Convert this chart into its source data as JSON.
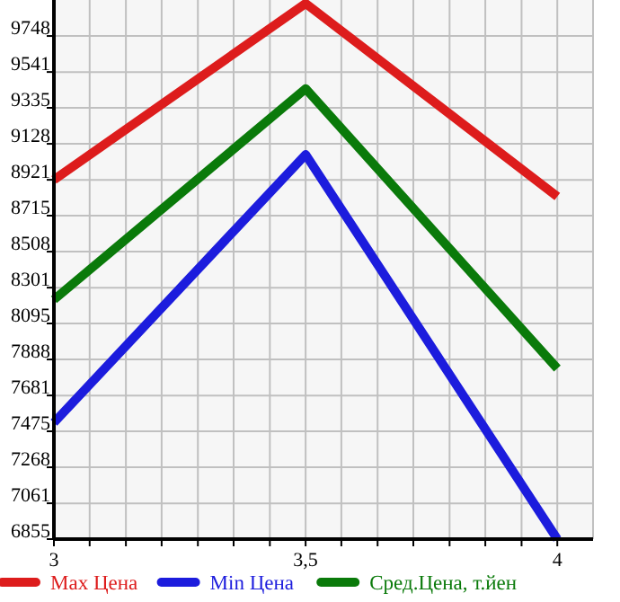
{
  "chart_data": {
    "type": "line",
    "x": [
      3,
      3.5,
      4
    ],
    "xlim": [
      3,
      4.071
    ],
    "xticks": [
      3,
      {
        "value": 3.071,
        "label": null
      },
      {
        "value": 3.143,
        "label": null
      },
      {
        "value": 3.214,
        "label": null
      },
      {
        "value": 3.286,
        "label": null
      },
      {
        "value": 3.357,
        "label": null
      },
      {
        "value": 3.429,
        "label": null
      },
      {
        "value": 3.5,
        "label": "3,5"
      },
      {
        "value": 3.571,
        "label": null
      },
      {
        "value": 3.643,
        "label": null
      },
      {
        "value": 3.714,
        "label": null
      },
      {
        "value": 3.786,
        "label": null
      },
      {
        "value": 3.857,
        "label": null
      },
      {
        "value": 3.929,
        "label": null
      },
      4
    ],
    "ylim": [
      6855,
      9955
    ],
    "yticks": [
      6855,
      7061,
      7268,
      7475,
      7681,
      7888,
      8095,
      8301,
      8508,
      8715,
      8921,
      9128,
      9335,
      9541,
      9748
    ],
    "grid": true,
    "legend": "bottom",
    "marker": "none",
    "line_style": "solid",
    "series": [
      {
        "name": "Max Цена",
        "color": "#dd1c1c",
        "values": [
          8921,
          9935,
          8825
        ]
      },
      {
        "name": "Min Цена",
        "color": "#1c1cdd",
        "values": [
          7525,
          9066,
          6855
        ]
      },
      {
        "name": "Сред.Цена, т.йен",
        "color": "#0a7a0a",
        "values": [
          8232,
          9445,
          7836
        ]
      }
    ]
  }
}
